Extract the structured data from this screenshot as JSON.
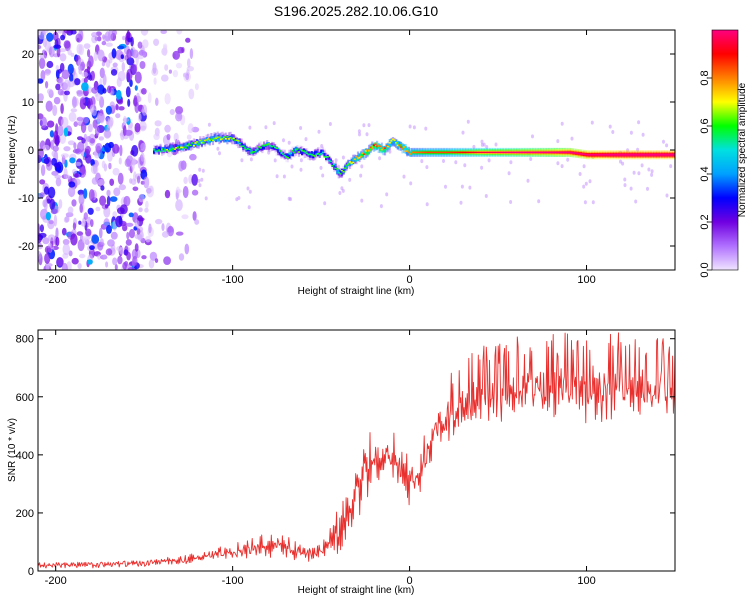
{
  "title": "S196.2025.282.10.06.G10",
  "chart_data": [
    {
      "type": "heatmap",
      "title": "S196.2025.282.10.06.G10",
      "xlabel": "Height of straight line (km)",
      "ylabel": "Frequency (Hz)",
      "xlim": [
        -210,
        150
      ],
      "ylim": [
        -25,
        25
      ],
      "xticks": [
        -200,
        -100,
        0,
        100
      ],
      "xtick_labels": [
        "-200",
        "-100",
        "0",
        "100"
      ],
      "yticks": [
        -20,
        -10,
        0,
        10,
        20
      ],
      "ytick_labels": [
        "-20",
        "-10",
        "0",
        "10",
        "20"
      ],
      "colorbar": {
        "label": "Normalized spectral amplitude",
        "range": [
          0,
          1
        ],
        "ticks": [
          0.0,
          0.2,
          0.4,
          0.6,
          0.8
        ],
        "tick_labels": [
          "0.0",
          "0.2",
          "0.4",
          "0.6",
          "0.8"
        ],
        "colors": [
          "#f0e4ff",
          "#b070ff",
          "#7000e0",
          "#0000ff",
          "#00a0ff",
          "#00e0e0",
          "#00ff00",
          "#ffff00",
          "#ff8000",
          "#ff0000",
          "#ff0080"
        ]
      },
      "ridge": {
        "x": [
          -145,
          -140,
          -130,
          -120,
          -110,
          -100,
          -95,
          -90,
          -85,
          -80,
          -75,
          -70,
          -65,
          -60,
          -55,
          -50,
          -45,
          -40,
          -35,
          -30,
          -25,
          -20,
          -15,
          -10,
          -5,
          0,
          10,
          20,
          40,
          60,
          80,
          90,
          100,
          120,
          150
        ],
        "y": [
          0,
          0,
          0.5,
          1.5,
          2.5,
          2.5,
          1.0,
          -0.5,
          0.5,
          1.0,
          0.0,
          -1.5,
          0.0,
          -0.5,
          -1.0,
          -0.5,
          -2.5,
          -5.0,
          -3.0,
          -1.5,
          -0.5,
          1.0,
          0.0,
          2.0,
          0.5,
          -0.5,
          -0.5,
          -0.5,
          -0.5,
          -0.5,
          -0.5,
          -0.5,
          -1.0,
          -1.0,
          -1.0
        ],
        "amplitude": [
          0.3,
          0.35,
          0.4,
          0.4,
          0.45,
          0.4,
          0.35,
          0.35,
          0.3,
          0.35,
          0.3,
          0.3,
          0.35,
          0.3,
          0.35,
          0.3,
          0.3,
          0.35,
          0.4,
          0.5,
          0.55,
          0.6,
          0.55,
          0.45,
          0.55,
          0.55,
          0.6,
          0.6,
          0.7,
          0.75,
          0.8,
          0.85,
          0.9,
          0.95,
          0.95
        ]
      },
      "noise_region_x": [
        -210,
        -120
      ]
    },
    {
      "type": "line",
      "xlabel": "Height of straight line (km)",
      "ylabel": "SNR (10 * v/v)",
      "xlim": [
        -210,
        150
      ],
      "ylim": [
        0,
        830
      ],
      "xticks": [
        -200,
        -100,
        0,
        100
      ],
      "xtick_labels": [
        "-200",
        "-100",
        "0",
        "100"
      ],
      "yticks": [
        0,
        200,
        400,
        600,
        800
      ],
      "ytick_labels": [
        "0",
        "200",
        "400",
        "600",
        "800"
      ],
      "series": [
        {
          "name": "SNR",
          "color": "#e8302e",
          "x": [
            -210,
            -200,
            -190,
            -180,
            -170,
            -160,
            -150,
            -140,
            -130,
            -120,
            -110,
            -100,
            -90,
            -80,
            -70,
            -60,
            -50,
            -45,
            -40,
            -35,
            -30,
            -27,
            -25,
            -22,
            -20,
            -15,
            -10,
            -5,
            0,
            5,
            10,
            15,
            20,
            30,
            40,
            50,
            60,
            70,
            80,
            90,
            100,
            110,
            120,
            130,
            140,
            150
          ],
          "values": [
            20,
            20,
            22,
            20,
            22,
            25,
            25,
            35,
            35,
            45,
            55,
            60,
            75,
            90,
            80,
            65,
            70,
            100,
            120,
            200,
            280,
            330,
            350,
            360,
            370,
            390,
            400,
            360,
            310,
            330,
            400,
            480,
            520,
            560,
            590,
            600,
            600,
            620,
            610,
            620,
            610,
            610,
            620,
            610,
            620,
            620
          ],
          "spread": [
            15,
            15,
            15,
            15,
            15,
            15,
            15,
            20,
            25,
            30,
            40,
            50,
            60,
            70,
            60,
            50,
            55,
            90,
            150,
            160,
            180,
            200,
            220,
            200,
            180,
            170,
            160,
            150,
            140,
            140,
            130,
            120,
            120,
            120,
            130,
            140,
            150,
            150,
            150,
            150,
            160,
            160,
            150,
            150,
            150,
            140
          ]
        }
      ]
    }
  ]
}
